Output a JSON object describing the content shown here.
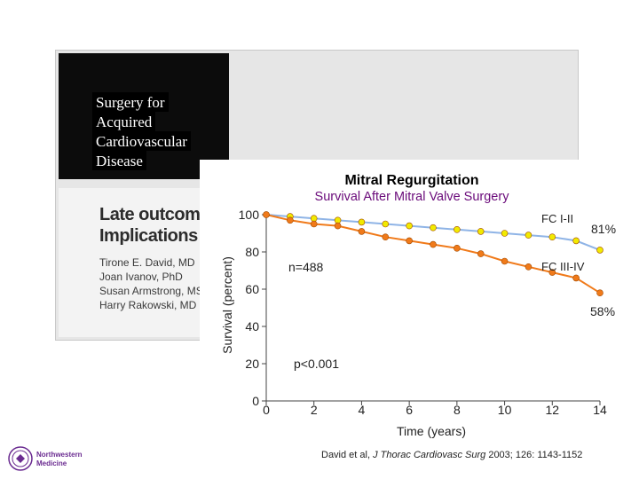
{
  "slide": {
    "topic_lines": [
      "Surgery for",
      "Acquired",
      "Cardiovascular",
      "Disease"
    ],
    "journal_title_lines": [
      "Late outcome",
      "Implications f"
    ],
    "journal_authors": [
      "Tirone E. David, MD",
      "Joan Ivanov, PhD",
      "Susan Armstrong, MS",
      "Harry Rakowski, MD"
    ],
    "logo_lines": [
      "Northwestern",
      "Medicine"
    ],
    "colors": {
      "journal_dark": "#0c0c0c",
      "logo_purple": "#6b2c91"
    }
  },
  "chart_data": {
    "type": "line",
    "title": "Mitral Regurgitation",
    "subtitle": "Survival After Mitral Valve Surgery",
    "xlabel": "Time (years)",
    "ylabel": "Survival (percent)",
    "xlim": [
      0,
      14
    ],
    "ylim": [
      0,
      100
    ],
    "xticks": [
      "0",
      "2",
      "4",
      "6",
      "8",
      "10",
      "12",
      "14"
    ],
    "yticks": [
      "0",
      "20",
      "40",
      "60",
      "80",
      "100"
    ],
    "series": [
      {
        "name": "FC I-II",
        "color": "#f2ea00",
        "line_color": "#8fb4e6",
        "x": [
          0,
          1,
          2,
          3,
          4,
          5,
          6,
          7,
          8,
          9,
          10,
          11,
          12,
          13,
          14
        ],
        "y": [
          100,
          99,
          98,
          97,
          96,
          95,
          94,
          93,
          92,
          91,
          90,
          89,
          88,
          86,
          81
        ]
      },
      {
        "name": "FC III-IV",
        "color": "#f07a1a",
        "line_color": "#f07a1a",
        "x": [
          0,
          1,
          2,
          3,
          4,
          5,
          6,
          7,
          8,
          9,
          10,
          11,
          12,
          13,
          14
        ],
        "y": [
          100,
          97,
          95,
          94,
          91,
          88,
          86,
          84,
          82,
          79,
          75,
          72,
          69,
          66,
          58
        ]
      }
    ],
    "annotations": {
      "n": "n=488",
      "p": "p<0.001",
      "end_high": "81%",
      "end_low": "58%",
      "citation_pre": "David et al, ",
      "citation_journal": "J Thorac Cardiovasc Surg",
      "citation_post": " 2003; 126: 1143-1152"
    },
    "legend": "inline"
  }
}
